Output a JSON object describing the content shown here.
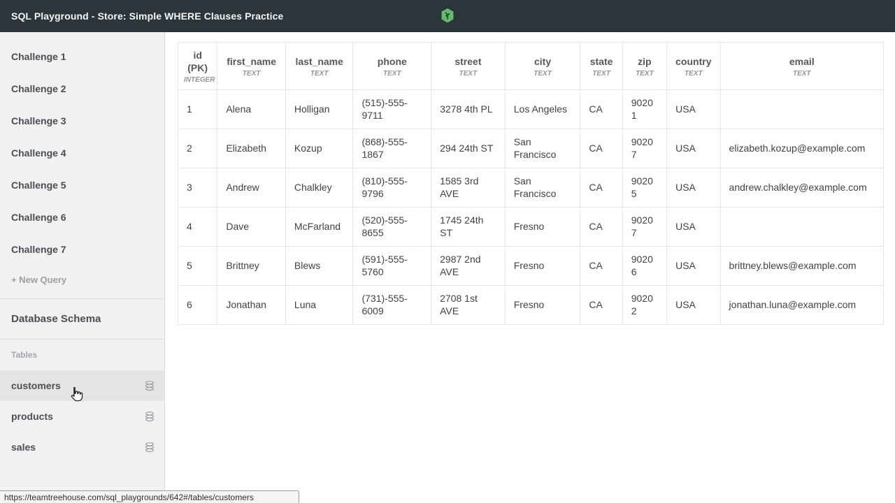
{
  "header": {
    "title": "SQL Playground - Store: Simple WHERE Clauses Practice",
    "logo_color": "#64bb6a"
  },
  "sidebar": {
    "challenges": [
      "Challenge 1",
      "Challenge 2",
      "Challenge 3",
      "Challenge 4",
      "Challenge 5",
      "Challenge 6",
      "Challenge 7"
    ],
    "new_query_label": "+ New Query",
    "schema_label": "Database Schema",
    "tables_label": "Tables",
    "tables": [
      {
        "name": "customers",
        "active": true
      },
      {
        "name": "products",
        "active": false
      },
      {
        "name": "sales",
        "active": false
      }
    ]
  },
  "table": {
    "columns": [
      {
        "name": "id (PK)",
        "type": "INTEGER"
      },
      {
        "name": "first_name",
        "type": "TEXT"
      },
      {
        "name": "last_name",
        "type": "TEXT"
      },
      {
        "name": "phone",
        "type": "TEXT"
      },
      {
        "name": "street",
        "type": "TEXT"
      },
      {
        "name": "city",
        "type": "TEXT"
      },
      {
        "name": "state",
        "type": "TEXT"
      },
      {
        "name": "zip",
        "type": "TEXT"
      },
      {
        "name": "country",
        "type": "TEXT"
      },
      {
        "name": "email",
        "type": "TEXT"
      }
    ],
    "rows": [
      [
        "1",
        "Alena",
        "Holligan",
        "(515)-555-9711",
        "3278 4th PL",
        "Los Angeles",
        "CA",
        "90201",
        "USA",
        ""
      ],
      [
        "2",
        "Elizabeth",
        "Kozup",
        "(868)-555-1867",
        "294 24th ST",
        "San Francisco",
        "CA",
        "90207",
        "USA",
        "elizabeth.kozup@example.com"
      ],
      [
        "3",
        "Andrew",
        "Chalkley",
        "(810)-555-9796",
        "1585 3rd AVE",
        "San Francisco",
        "CA",
        "90205",
        "USA",
        "andrew.chalkley@example.com"
      ],
      [
        "4",
        "Dave",
        "McFarland",
        "(520)-555-8655",
        "1745 24th ST",
        "Fresno",
        "CA",
        "90207",
        "USA",
        ""
      ],
      [
        "5",
        "Brittney",
        "Blews",
        "(591)-555-5760",
        "2987 2nd AVE",
        "Fresno",
        "CA",
        "90206",
        "USA",
        "brittney.blews@example.com"
      ],
      [
        "6",
        "Jonathan",
        "Luna",
        "(731)-555-6009",
        "2708 1st AVE",
        "Fresno",
        "CA",
        "90202",
        "USA",
        "jonathan.luna@example.com"
      ]
    ]
  },
  "status_bar": {
    "url": "https://teamtreehouse.com/sql_playgrounds/642#/tables/customers"
  }
}
